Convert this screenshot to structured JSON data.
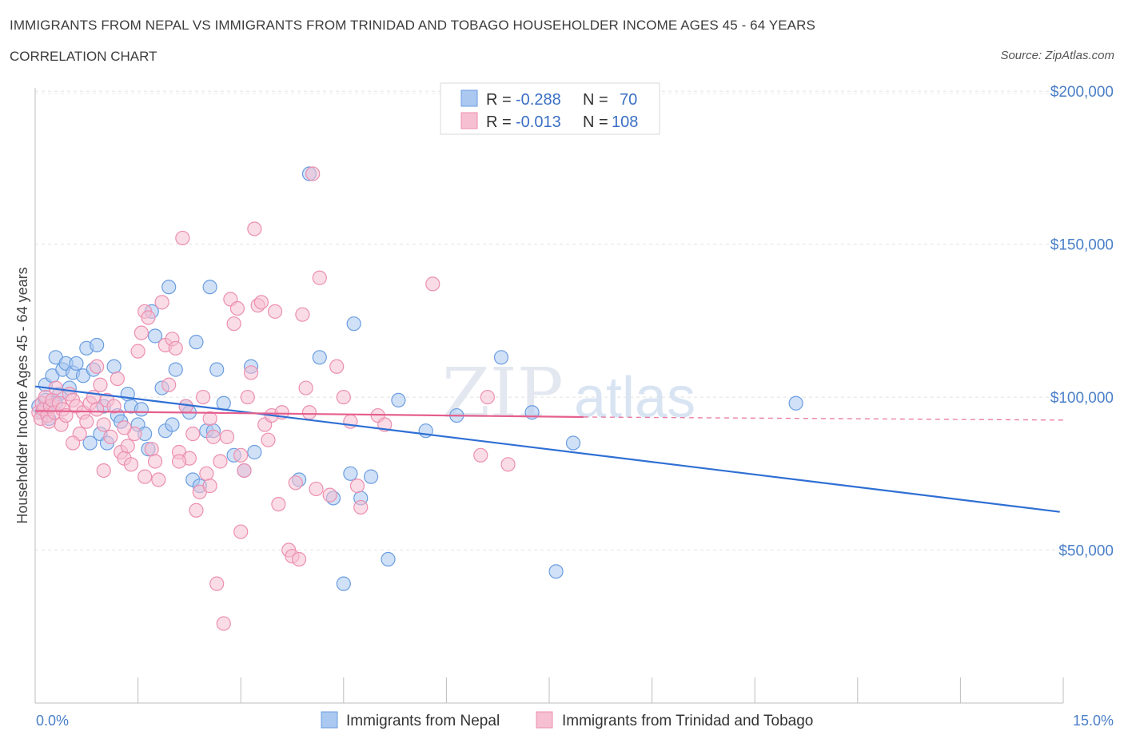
{
  "header": {
    "title": "IMMIGRANTS FROM NEPAL VS IMMIGRANTS FROM TRINIDAD AND TOBAGO HOUSEHOLDER INCOME AGES 45 - 64 YEARS",
    "subtitle": "CORRELATION CHART",
    "source": "Source: ZipAtlas.com"
  },
  "watermark": {
    "zip": "ZIP",
    "atlas": "atlas"
  },
  "legend": {
    "r_label": "R =",
    "n_label": "N =",
    "rows": [
      {
        "r": "-0.288",
        "n": "70"
      },
      {
        "r": "-0.013",
        "n": "108"
      }
    ]
  },
  "chart_data": {
    "type": "scatter",
    "title": "IMMIGRANTS FROM NEPAL VS IMMIGRANTS FROM TRINIDAD AND TOBAGO HOUSEHOLDER INCOME AGES 45 - 64 YEARS",
    "xlabel": "",
    "ylabel": "Householder Income Ages 45 - 64 years",
    "xlim": [
      0,
      15
    ],
    "ylim": [
      0,
      205000
    ],
    "x_tick_labels": [
      "0.0%",
      "15.0%"
    ],
    "y_ticks": [
      50000,
      100000,
      150000,
      200000
    ],
    "y_tick_labels": [
      "$50,000",
      "$100,000",
      "$150,000",
      "$200,000"
    ],
    "series": [
      {
        "name": "Immigrants from Nepal",
        "color": "#6b9de0",
        "fill": "#aac8f0",
        "r": -0.288,
        "n": 70,
        "trend": {
          "x": [
            0,
            14.95
          ],
          "y": [
            103500,
            62500
          ],
          "dashed_to": null
        },
        "points": [
          [
            0.05,
            97000
          ],
          [
            0.1,
            95000
          ],
          [
            0.15,
            104000
          ],
          [
            0.2,
            93000
          ],
          [
            0.25,
            107000
          ],
          [
            0.3,
            113000
          ],
          [
            0.35,
            101000
          ],
          [
            0.4,
            109000
          ],
          [
            0.45,
            111000
          ],
          [
            0.5,
            103000
          ],
          [
            0.55,
            108000
          ],
          [
            0.6,
            111000
          ],
          [
            0.7,
            107000
          ],
          [
            0.75,
            116000
          ],
          [
            0.8,
            85000
          ],
          [
            0.85,
            109000
          ],
          [
            0.9,
            117000
          ],
          [
            0.95,
            88000
          ],
          [
            1.0,
            97000
          ],
          [
            1.05,
            85000
          ],
          [
            1.15,
            110000
          ],
          [
            1.2,
            94000
          ],
          [
            1.25,
            92000
          ],
          [
            1.35,
            101000
          ],
          [
            1.4,
            97000
          ],
          [
            1.5,
            91000
          ],
          [
            1.55,
            96000
          ],
          [
            1.6,
            88000
          ],
          [
            1.65,
            83000
          ],
          [
            1.7,
            128000
          ],
          [
            1.75,
            120000
          ],
          [
            1.85,
            103000
          ],
          [
            1.9,
            89000
          ],
          [
            1.95,
            136000
          ],
          [
            2.0,
            91000
          ],
          [
            2.05,
            109000
          ],
          [
            2.2,
            97000
          ],
          [
            2.25,
            95000
          ],
          [
            2.3,
            73000
          ],
          [
            2.35,
            118000
          ],
          [
            2.4,
            71000
          ],
          [
            2.5,
            89000
          ],
          [
            2.55,
            136000
          ],
          [
            2.6,
            89000
          ],
          [
            2.65,
            109000
          ],
          [
            2.75,
            98000
          ],
          [
            2.9,
            81000
          ],
          [
            3.05,
            76000
          ],
          [
            3.15,
            110000
          ],
          [
            3.2,
            82000
          ],
          [
            3.85,
            73000
          ],
          [
            4.0,
            173000
          ],
          [
            4.15,
            113000
          ],
          [
            4.35,
            67000
          ],
          [
            4.5,
            39000
          ],
          [
            4.6,
            75000
          ],
          [
            4.65,
            124000
          ],
          [
            4.75,
            67000
          ],
          [
            4.9,
            74000
          ],
          [
            5.15,
            47000
          ],
          [
            5.3,
            99000
          ],
          [
            5.7,
            89000
          ],
          [
            6.15,
            94000
          ],
          [
            6.8,
            113000
          ],
          [
            7.25,
            95000
          ],
          [
            7.6,
            43000
          ],
          [
            7.85,
            85000
          ],
          [
            11.1,
            98000
          ],
          [
            0.15,
            99000
          ],
          [
            0.3,
            98000
          ]
        ]
      },
      {
        "name": "Immigrants from Trinidad and Tobago",
        "color": "#ec8fb0",
        "fill": "#f6bfd2",
        "r": -0.013,
        "n": 108,
        "trend": {
          "x": [
            0,
            8.0
          ],
          "y": [
            95500,
            93500
          ],
          "dashed_to": [
            15,
            92500
          ]
        },
        "points": [
          [
            0.05,
            95000
          ],
          [
            0.08,
            93000
          ],
          [
            0.1,
            98000
          ],
          [
            0.12,
            96000
          ],
          [
            0.15,
            100000
          ],
          [
            0.18,
            94000
          ],
          [
            0.2,
            92000
          ],
          [
            0.22,
            97000
          ],
          [
            0.25,
            99000
          ],
          [
            0.28,
            95000
          ],
          [
            0.3,
            103000
          ],
          [
            0.35,
            98000
          ],
          [
            0.38,
            91000
          ],
          [
            0.4,
            96000
          ],
          [
            0.45,
            94000
          ],
          [
            0.5,
            101000
          ],
          [
            0.55,
            99000
          ],
          [
            0.6,
            97000
          ],
          [
            0.65,
            88000
          ],
          [
            0.7,
            95000
          ],
          [
            0.75,
            92000
          ],
          [
            0.8,
            98000
          ],
          [
            0.85,
            100000
          ],
          [
            0.9,
            96000
          ],
          [
            0.95,
            104000
          ],
          [
            1.0,
            91000
          ],
          [
            1.05,
            99000
          ],
          [
            1.1,
            87000
          ],
          [
            1.15,
            97000
          ],
          [
            1.2,
            106000
          ],
          [
            1.25,
            82000
          ],
          [
            1.3,
            80000
          ],
          [
            1.35,
            84000
          ],
          [
            1.4,
            78000
          ],
          [
            1.45,
            88000
          ],
          [
            1.5,
            115000
          ],
          [
            1.55,
            121000
          ],
          [
            1.6,
            128000
          ],
          [
            1.65,
            126000
          ],
          [
            1.7,
            83000
          ],
          [
            1.75,
            79000
          ],
          [
            1.8,
            73000
          ],
          [
            1.85,
            131000
          ],
          [
            1.9,
            117000
          ],
          [
            1.95,
            104000
          ],
          [
            2.0,
            119000
          ],
          [
            2.05,
            116000
          ],
          [
            2.1,
            82000
          ],
          [
            2.15,
            152000
          ],
          [
            2.2,
            97000
          ],
          [
            2.25,
            80000
          ],
          [
            2.3,
            88000
          ],
          [
            2.35,
            63000
          ],
          [
            2.4,
            69000
          ],
          [
            2.45,
            100000
          ],
          [
            2.5,
            75000
          ],
          [
            2.55,
            71000
          ],
          [
            2.6,
            87000
          ],
          [
            2.65,
            39000
          ],
          [
            2.7,
            79000
          ],
          [
            2.75,
            26000
          ],
          [
            2.8,
            87000
          ],
          [
            2.85,
            132000
          ],
          [
            2.9,
            124000
          ],
          [
            2.95,
            129000
          ],
          [
            3.0,
            56000
          ],
          [
            3.05,
            76000
          ],
          [
            3.1,
            100000
          ],
          [
            3.15,
            108000
          ],
          [
            3.2,
            155000
          ],
          [
            3.25,
            130000
          ],
          [
            3.3,
            131000
          ],
          [
            3.35,
            91000
          ],
          [
            3.4,
            86000
          ],
          [
            3.45,
            94000
          ],
          [
            3.5,
            128000
          ],
          [
            3.55,
            65000
          ],
          [
            3.6,
            95000
          ],
          [
            3.7,
            50000
          ],
          [
            3.75,
            48000
          ],
          [
            3.8,
            72000
          ],
          [
            3.85,
            47000
          ],
          [
            3.9,
            127000
          ],
          [
            3.95,
            103000
          ],
          [
            4.0,
            95000
          ],
          [
            4.05,
            173000
          ],
          [
            4.1,
            70000
          ],
          [
            4.15,
            139000
          ],
          [
            4.3,
            68000
          ],
          [
            4.4,
            110000
          ],
          [
            4.5,
            100000
          ],
          [
            4.6,
            92000
          ],
          [
            4.7,
            71000
          ],
          [
            4.75,
            64000
          ],
          [
            5.0,
            94000
          ],
          [
            5.1,
            91000
          ],
          [
            5.8,
            137000
          ],
          [
            6.5,
            81000
          ],
          [
            6.6,
            100000
          ],
          [
            6.9,
            78000
          ],
          [
            1.0,
            76000
          ],
          [
            1.6,
            74000
          ],
          [
            2.1,
            79000
          ],
          [
            0.55,
            85000
          ],
          [
            1.3,
            90000
          ],
          [
            2.55,
            93000
          ],
          [
            3.0,
            81000
          ],
          [
            0.9,
            110000
          ]
        ]
      }
    ]
  },
  "bottom_legend": [
    {
      "label": "Immigrants from Nepal"
    },
    {
      "label": "Immigrants from Trinidad and Tobago"
    }
  ]
}
